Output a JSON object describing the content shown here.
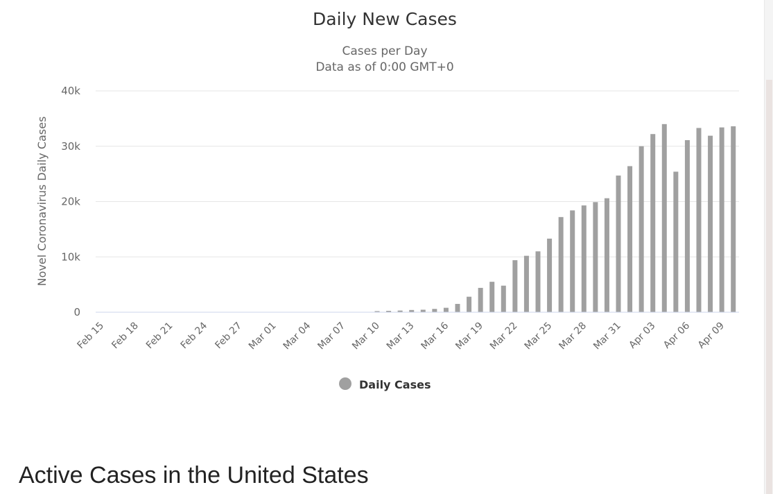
{
  "chart_data": {
    "type": "bar",
    "title": "Daily New Cases",
    "subtitle_lines": [
      "Cases per Day",
      "Data as of 0:00 GMT+0"
    ],
    "xlabel": "",
    "ylabel": "Novel Coronavirus Daily Cases",
    "ylim": [
      0,
      40000
    ],
    "yticks": [
      0,
      10000,
      20000,
      30000,
      40000
    ],
    "ytick_labels": [
      "0",
      "10k",
      "20k",
      "30k",
      "40k"
    ],
    "grid": true,
    "legend_position": "bottom-center",
    "tick_every": 3,
    "categories": [
      "Feb 15",
      "Feb 16",
      "Feb 17",
      "Feb 18",
      "Feb 19",
      "Feb 20",
      "Feb 21",
      "Feb 22",
      "Feb 23",
      "Feb 24",
      "Feb 25",
      "Feb 26",
      "Feb 27",
      "Feb 28",
      "Feb 29",
      "Mar 01",
      "Mar 02",
      "Mar 03",
      "Mar 04",
      "Mar 05",
      "Mar 06",
      "Mar 07",
      "Mar 08",
      "Mar 09",
      "Mar 10",
      "Mar 11",
      "Mar 12",
      "Mar 13",
      "Mar 14",
      "Mar 15",
      "Mar 16",
      "Mar 17",
      "Mar 18",
      "Mar 19",
      "Mar 20",
      "Mar 21",
      "Mar 22",
      "Mar 23",
      "Mar 24",
      "Mar 25",
      "Mar 26",
      "Mar 27",
      "Mar 28",
      "Mar 29",
      "Mar 30",
      "Mar 31",
      "Apr 01",
      "Apr 02",
      "Apr 03",
      "Apr 04",
      "Apr 05",
      "Apr 06",
      "Apr 07",
      "Apr 08",
      "Apr 09",
      "Apr 10"
    ],
    "series": [
      {
        "name": "Daily Cases",
        "color": "#a0a0a0",
        "values": [
          0,
          0,
          0,
          0,
          0,
          0,
          0,
          0,
          0,
          0,
          0,
          0,
          0,
          0,
          0,
          0,
          0,
          0,
          0,
          0,
          0,
          0,
          0,
          0,
          200,
          250,
          300,
          400,
          450,
          600,
          800,
          1500,
          2800,
          4400,
          5500,
          4800,
          9400,
          10200,
          11000,
          13300,
          17200,
          18400,
          19300,
          19900,
          20600,
          24700,
          26400,
          30000,
          32200,
          34000,
          25400,
          31100,
          33300,
          31900,
          33400,
          33600
        ]
      }
    ]
  },
  "page": {
    "section_heading": "Active Cases in the United States"
  }
}
